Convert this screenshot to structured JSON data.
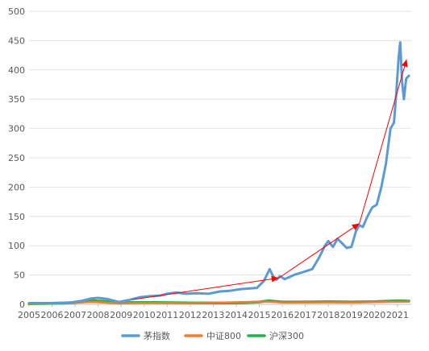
{
  "chart_data": {
    "type": "line",
    "ylim": [
      0,
      500
    ],
    "y_ticks": [
      0,
      50,
      100,
      150,
      200,
      250,
      300,
      350,
      400,
      450,
      500
    ],
    "xlim": [
      2005,
      2021.6
    ],
    "x_ticks": [
      "2005",
      "2006",
      "2007",
      "2008",
      "2009",
      "2010",
      "2011",
      "2012",
      "2013",
      "2014",
      "2015",
      "2016",
      "2017",
      "2018",
      "2019",
      "2020",
      "2021"
    ],
    "grid": "horizontal",
    "legend_position": "bottom",
    "series": [
      {
        "name": "茅指数",
        "color": "#5b9bd5",
        "points": [
          [
            2005.0,
            2
          ],
          [
            2006.0,
            2
          ],
          [
            2006.8,
            3
          ],
          [
            2007.3,
            6
          ],
          [
            2007.7,
            10
          ],
          [
            2008.0,
            11
          ],
          [
            2008.4,
            9
          ],
          [
            2008.9,
            4
          ],
          [
            2009.3,
            7
          ],
          [
            2009.8,
            12
          ],
          [
            2010.3,
            14
          ],
          [
            2010.7,
            15
          ],
          [
            2011.0,
            18
          ],
          [
            2011.4,
            20
          ],
          [
            2011.8,
            18
          ],
          [
            2012.3,
            19
          ],
          [
            2012.8,
            18
          ],
          [
            2013.3,
            22
          ],
          [
            2013.7,
            23
          ],
          [
            2014.2,
            26
          ],
          [
            2014.6,
            27
          ],
          [
            2014.9,
            28
          ],
          [
            2015.2,
            40
          ],
          [
            2015.45,
            60
          ],
          [
            2015.6,
            48
          ],
          [
            2015.75,
            42
          ],
          [
            2015.9,
            48
          ],
          [
            2016.1,
            43
          ],
          [
            2016.5,
            50
          ],
          [
            2016.9,
            55
          ],
          [
            2017.3,
            60
          ],
          [
            2017.6,
            80
          ],
          [
            2017.85,
            100
          ],
          [
            2018.0,
            108
          ],
          [
            2018.2,
            98
          ],
          [
            2018.4,
            112
          ],
          [
            2018.6,
            104
          ],
          [
            2018.8,
            96
          ],
          [
            2019.0,
            98
          ],
          [
            2019.2,
            125
          ],
          [
            2019.35,
            135
          ],
          [
            2019.5,
            132
          ],
          [
            2019.7,
            150
          ],
          [
            2019.9,
            165
          ],
          [
            2020.1,
            170
          ],
          [
            2020.3,
            200
          ],
          [
            2020.5,
            240
          ],
          [
            2020.7,
            300
          ],
          [
            2020.85,
            310
          ],
          [
            2020.95,
            360
          ],
          [
            2021.05,
            420
          ],
          [
            2021.12,
            447
          ],
          [
            2021.2,
            380
          ],
          [
            2021.28,
            350
          ],
          [
            2021.38,
            385
          ],
          [
            2021.5,
            390
          ]
        ]
      },
      {
        "name": "中证800",
        "color": "#ed7d31",
        "points": [
          [
            2005.0,
            1
          ],
          [
            2007.8,
            4
          ],
          [
            2008.9,
            1.5
          ],
          [
            2010.0,
            2.5
          ],
          [
            2012.0,
            2
          ],
          [
            2015.4,
            4.5
          ],
          [
            2016.0,
            3
          ],
          [
            2018.0,
            3.5
          ],
          [
            2019.0,
            3
          ],
          [
            2021.0,
            4.5
          ],
          [
            2021.5,
            4.5
          ]
        ]
      },
      {
        "name": "沪深300",
        "color": "#1fb34a",
        "points": [
          [
            2005.0,
            1
          ],
          [
            2006.5,
            2
          ],
          [
            2007.3,
            4
          ],
          [
            2007.8,
            6
          ],
          [
            2008.3,
            5
          ],
          [
            2008.9,
            2
          ],
          [
            2009.5,
            3
          ],
          [
            2010.5,
            3
          ],
          [
            2012.0,
            2.5
          ],
          [
            2014.0,
            2.5
          ],
          [
            2015.0,
            4
          ],
          [
            2015.4,
            6
          ],
          [
            2016.0,
            4
          ],
          [
            2017.0,
            4
          ],
          [
            2018.0,
            4.5
          ],
          [
            2019.0,
            4
          ],
          [
            2020.0,
            4.5
          ],
          [
            2021.0,
            6
          ],
          [
            2021.5,
            5.5
          ]
        ]
      }
    ],
    "trend_arrows": {
      "color": "#ff0000",
      "segments": [
        [
          [
            2009.5,
            8
          ],
          [
            2015.85,
            45
          ]
        ],
        [
          [
            2015.85,
            45
          ],
          [
            2019.35,
            138
          ]
        ],
        [
          [
            2019.35,
            138
          ],
          [
            2021.4,
            418
          ]
        ]
      ]
    }
  }
}
